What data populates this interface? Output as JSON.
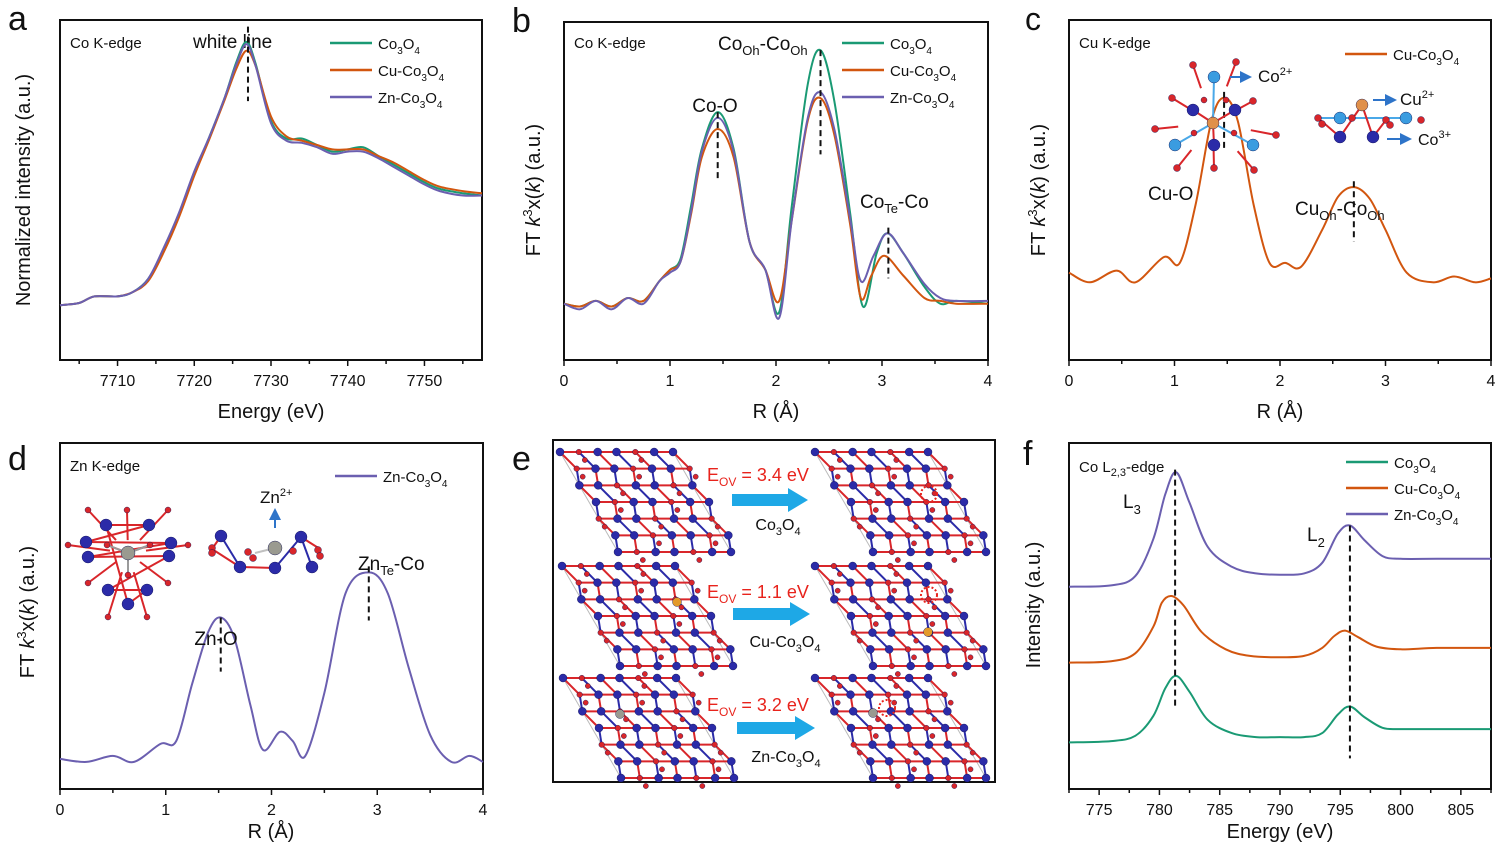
{
  "colors": {
    "co3o4": "#1a9a74",
    "cu": "#d2560f",
    "zn": "#6b5fb0",
    "axis": "#111111",
    "red": "#e8231c",
    "arrow": "#1ea8e6",
    "codark": "#2b2ba8",
    "o": "#d9262a"
  },
  "chart_data": [
    {
      "id": "a",
      "panel_letter": "a",
      "type": "line",
      "edge_label": "Co K-edge",
      "xlabel": "Energy (eV)",
      "ylabel": "Normalized intensity (a.u.)",
      "xlim": [
        7702.5,
        7757.5
      ],
      "ylim": [
        0,
        1.55
      ],
      "xticks": [
        7710,
        7720,
        7730,
        7740,
        7750
      ],
      "xtick_labels": [
        "7710",
        "7720",
        "7730",
        "7740",
        "7750"
      ],
      "legend": "top-right",
      "annotations": [
        {
          "text": "white line",
          "x": 7727
        }
      ],
      "series": [
        {
          "name": "Co3O4",
          "sub": [
            "Co",
            "3",
            "O",
            "4"
          ],
          "color_key": "co3o4",
          "x": [
            7702.5,
            7705,
            7707,
            7710,
            7712,
            7714,
            7716,
            7718,
            7720,
            7722,
            7724,
            7725.5,
            7726.8,
            7728,
            7730,
            7732,
            7734,
            7736,
            7738,
            7740,
            7742,
            7744,
            7746,
            7748,
            7750,
            7752,
            7755,
            7757.5
          ],
          "y": [
            0.25,
            0.26,
            0.29,
            0.29,
            0.31,
            0.37,
            0.5,
            0.66,
            0.85,
            1.02,
            1.2,
            1.36,
            1.45,
            1.35,
            1.09,
            1.01,
            1.01,
            0.98,
            0.95,
            0.96,
            0.97,
            0.93,
            0.89,
            0.85,
            0.81,
            0.78,
            0.76,
            0.75
          ]
        },
        {
          "name": "Cu-Co3O4",
          "sub": [
            "Cu-Co",
            "3",
            "O",
            "4"
          ],
          "color_key": "cu",
          "x": [
            7702.5,
            7705,
            7707,
            7710,
            7712,
            7714,
            7716,
            7718,
            7720,
            7722,
            7724,
            7725.5,
            7726.8,
            7728,
            7730,
            7732,
            7734,
            7736,
            7738,
            7740,
            7742,
            7744,
            7746,
            7748,
            7750,
            7752,
            7755,
            7757.5
          ],
          "y": [
            0.25,
            0.26,
            0.29,
            0.29,
            0.31,
            0.36,
            0.49,
            0.65,
            0.84,
            1.01,
            1.19,
            1.33,
            1.41,
            1.34,
            1.11,
            1.02,
            1.0,
            0.98,
            0.96,
            0.96,
            0.96,
            0.93,
            0.9,
            0.86,
            0.82,
            0.79,
            0.77,
            0.76
          ]
        },
        {
          "name": "Zn-Co3O4",
          "sub": [
            "Zn-Co",
            "3",
            "O",
            "4"
          ],
          "color_key": "zn",
          "x": [
            7702.5,
            7705,
            7707,
            7710,
            7712,
            7714,
            7716,
            7718,
            7720,
            7722,
            7724,
            7725.5,
            7726.8,
            7728,
            7730,
            7732,
            7734,
            7736,
            7738,
            7740,
            7742,
            7744,
            7746,
            7748,
            7750,
            7752,
            7755,
            7757.5
          ],
          "y": [
            0.25,
            0.26,
            0.29,
            0.29,
            0.31,
            0.37,
            0.51,
            0.67,
            0.86,
            1.02,
            1.2,
            1.35,
            1.44,
            1.34,
            1.08,
            1.0,
            0.99,
            0.97,
            0.94,
            0.95,
            0.95,
            0.92,
            0.88,
            0.84,
            0.8,
            0.77,
            0.75,
            0.75
          ]
        }
      ]
    },
    {
      "id": "b",
      "panel_letter": "b",
      "type": "line",
      "edge_label": "Co K-edge",
      "xlabel": "R (Å)",
      "ylabel": "FT k3x(k) (a.u.)",
      "xlim": [
        0,
        4
      ],
      "ylim": [
        -0.2,
        1.0
      ],
      "xticks": [
        0,
        1,
        2,
        3,
        4
      ],
      "xtick_labels": [
        "0",
        "1",
        "2",
        "3",
        "4"
      ],
      "legend": "top-right",
      "annotations": [
        {
          "text": "Co-O",
          "x": 1.45
        },
        {
          "text": "CoOh-CoOh",
          "x": 2.42
        },
        {
          "text": "CoTe-Co",
          "x": 3.06
        }
      ],
      "series": [
        {
          "name": "Co3O4",
          "sub": [
            "Co",
            "3",
            "O",
            "4"
          ],
          "color_key": "co3o4",
          "x": [
            0,
            0.15,
            0.3,
            0.45,
            0.6,
            0.75,
            0.9,
            1.0,
            1.1,
            1.2,
            1.3,
            1.45,
            1.6,
            1.75,
            1.9,
            2.03,
            2.15,
            2.3,
            2.42,
            2.55,
            2.7,
            2.82,
            2.95,
            3.05,
            3.2,
            3.4,
            3.55,
            3.7,
            4.0
          ],
          "y": [
            0.0,
            -0.01,
            0.01,
            -0.01,
            0.02,
            0.01,
            0.08,
            0.12,
            0.16,
            0.35,
            0.55,
            0.68,
            0.55,
            0.22,
            0.12,
            -0.03,
            0.35,
            0.78,
            0.9,
            0.72,
            0.32,
            -0.01,
            0.18,
            0.25,
            0.18,
            0.06,
            0.0,
            0.01,
            0.0
          ]
        },
        {
          "name": "Cu-Co3O4",
          "sub": [
            "Cu-Co",
            "3",
            "O",
            "4"
          ],
          "color_key": "cu",
          "x": [
            0,
            0.15,
            0.3,
            0.45,
            0.6,
            0.75,
            0.9,
            1.0,
            1.1,
            1.2,
            1.3,
            1.45,
            1.6,
            1.75,
            1.9,
            2.03,
            2.15,
            2.3,
            2.42,
            2.55,
            2.7,
            2.8,
            2.9,
            3.02,
            3.2,
            3.4,
            3.55,
            3.7,
            4.0
          ],
          "y": [
            0.0,
            -0.01,
            0.01,
            -0.01,
            0.02,
            0.01,
            0.08,
            0.12,
            0.15,
            0.32,
            0.52,
            0.62,
            0.52,
            0.22,
            0.12,
            0.01,
            0.3,
            0.65,
            0.73,
            0.6,
            0.28,
            0.02,
            0.1,
            0.17,
            0.1,
            0.02,
            0.01,
            0.0,
            0.0
          ]
        },
        {
          "name": "Zn-Co3O4",
          "sub": [
            "Zn-Co",
            "3",
            "O",
            "4"
          ],
          "color_key": "zn",
          "x": [
            0,
            0.15,
            0.3,
            0.45,
            0.6,
            0.75,
            0.9,
            1.0,
            1.1,
            1.2,
            1.3,
            1.45,
            1.6,
            1.75,
            1.9,
            2.03,
            2.15,
            2.3,
            2.42,
            2.55,
            2.7,
            2.8,
            2.92,
            3.05,
            3.2,
            3.4,
            3.55,
            3.7,
            4.0
          ],
          "y": [
            0.0,
            -0.02,
            0.01,
            -0.02,
            0.02,
            0.0,
            0.08,
            0.11,
            0.15,
            0.33,
            0.54,
            0.66,
            0.54,
            0.22,
            0.12,
            -0.05,
            0.3,
            0.66,
            0.75,
            0.62,
            0.3,
            0.08,
            0.17,
            0.25,
            0.18,
            0.07,
            0.02,
            0.01,
            0.01
          ]
        }
      ]
    },
    {
      "id": "c",
      "panel_letter": "c",
      "type": "line",
      "edge_label": "Cu K-edge",
      "xlabel": "R (Å)",
      "ylabel": "FT k3x(k) (a.u.)",
      "xlim": [
        0,
        4
      ],
      "ylim": [
        -0.45,
        1.3
      ],
      "xticks": [
        0,
        1,
        2,
        3,
        4
      ],
      "xtick_labels": [
        "0",
        "1",
        "2",
        "3",
        "4"
      ],
      "legend": "top-right",
      "annotations": [
        {
          "text": "Cu-O",
          "x": 1.47
        },
        {
          "text": "CuOh-CoOh",
          "x": 2.7
        }
      ],
      "inset_labels": [
        "Co2+",
        "Cu2+",
        "Co3+"
      ],
      "series": [
        {
          "name": "Cu-Co3O4",
          "sub": [
            "Cu-Co",
            "3",
            "O",
            "4"
          ],
          "color_key": "cu",
          "x": [
            0,
            0.2,
            0.45,
            0.63,
            0.9,
            1.05,
            1.2,
            1.35,
            1.47,
            1.6,
            1.75,
            1.9,
            2.05,
            2.2,
            2.4,
            2.55,
            2.7,
            2.85,
            3.0,
            3.2,
            3.45,
            3.65,
            3.85,
            4.0
          ],
          "y": [
            0.0,
            -0.05,
            0.01,
            -0.05,
            0.08,
            0.05,
            0.35,
            0.78,
            0.9,
            0.78,
            0.35,
            0.05,
            0.05,
            0.03,
            0.22,
            0.39,
            0.44,
            0.38,
            0.22,
            0.0,
            -0.05,
            -0.02,
            -0.05,
            -0.03
          ]
        }
      ]
    },
    {
      "id": "d",
      "panel_letter": "d",
      "type": "line",
      "edge_label": "Zn K-edge",
      "xlabel": "R (Å)",
      "ylabel": "FT k3x(k) (a.u.)",
      "xlim": [
        0,
        4
      ],
      "ylim": [
        -0.1,
        1.05
      ],
      "xticks": [
        0,
        1,
        2,
        3,
        4
      ],
      "xtick_labels": [
        "0",
        "1",
        "2",
        "3",
        "4"
      ],
      "legend": "top-right",
      "annotations": [
        {
          "text": "Zn-O",
          "x": 1.52
        },
        {
          "text": "ZnTe-Co",
          "x": 2.92
        }
      ],
      "inset_labels": [
        "Zn2+"
      ],
      "series": [
        {
          "name": "Zn-Co3O4",
          "sub": [
            "Zn-Co",
            "3",
            "O",
            "4"
          ],
          "color_key": "zn",
          "x": [
            0,
            0.25,
            0.5,
            0.7,
            0.95,
            1.1,
            1.25,
            1.4,
            1.52,
            1.65,
            1.8,
            1.92,
            2.08,
            2.2,
            2.32,
            2.5,
            2.7,
            2.92,
            3.1,
            3.3,
            3.5,
            3.7,
            3.87,
            4.0
          ],
          "y": [
            0.0,
            -0.01,
            0.01,
            -0.01,
            0.05,
            0.06,
            0.25,
            0.42,
            0.47,
            0.4,
            0.18,
            0.03,
            0.09,
            0.06,
            0.01,
            0.22,
            0.55,
            0.62,
            0.55,
            0.3,
            0.08,
            -0.01,
            0.01,
            -0.01
          ]
        }
      ]
    },
    {
      "id": "f",
      "panel_letter": "f",
      "type": "line",
      "edge_label": "Co L2,3-edge",
      "xlabel": "Energy (eV)",
      "ylabel": "Intensity (a.u.)",
      "xlim": [
        772.5,
        807.5
      ],
      "ylim": [
        0,
        2.6
      ],
      "xticks": [
        775,
        780,
        785,
        790,
        795,
        800,
        805
      ],
      "xtick_labels": [
        "775",
        "780",
        "785",
        "790",
        "795",
        "800",
        "805"
      ],
      "legend": "top-right",
      "annotations": [
        {
          "text": "L3",
          "x": 781.3
        },
        {
          "text": "L2",
          "x": 795.8
        }
      ],
      "series": [
        {
          "name": "Co3O4",
          "sub": [
            "Co",
            "3",
            "O",
            "4"
          ],
          "color_key": "co3o4",
          "x": [
            772.5,
            776,
            778,
            779.5,
            780.5,
            781.4,
            782.5,
            784,
            786,
            788,
            790,
            792,
            793.5,
            794.8,
            795.8,
            797,
            798.5,
            800,
            803,
            807.5
          ],
          "y": [
            0.35,
            0.36,
            0.4,
            0.55,
            0.76,
            0.85,
            0.73,
            0.52,
            0.42,
            0.39,
            0.39,
            0.39,
            0.42,
            0.56,
            0.62,
            0.54,
            0.46,
            0.45,
            0.45,
            0.45
          ]
        },
        {
          "name": "Cu-Co3O4",
          "sub": [
            "Cu-Co",
            "3",
            "O",
            "4"
          ],
          "color_key": "cu",
          "x": [
            772.5,
            776,
            778,
            779.5,
            780.2,
            781.0,
            782.0,
            783.5,
            785.5,
            787.5,
            790,
            792,
            793.5,
            794.5,
            795.4,
            796.5,
            798,
            800,
            803,
            807.5
          ],
          "y": [
            0.95,
            0.96,
            1.02,
            1.22,
            1.4,
            1.45,
            1.38,
            1.18,
            1.05,
            1.0,
            0.99,
            1.0,
            1.06,
            1.15,
            1.19,
            1.14,
            1.07,
            1.05,
            1.06,
            1.06
          ]
        },
        {
          "name": "Zn-Co3O4",
          "sub": [
            "Zn-Co",
            "3",
            "O",
            "4"
          ],
          "color_key": "zn",
          "x": [
            772.5,
            776,
            778,
            779.5,
            780.5,
            781.4,
            782.5,
            784,
            786,
            788,
            790,
            792,
            793.5,
            794.8,
            795.8,
            797,
            798.5,
            800,
            803,
            807.5
          ],
          "y": [
            1.52,
            1.53,
            1.6,
            1.88,
            2.22,
            2.38,
            2.15,
            1.82,
            1.67,
            1.62,
            1.61,
            1.62,
            1.7,
            1.92,
            1.98,
            1.87,
            1.75,
            1.73,
            1.73,
            1.73
          ]
        }
      ]
    }
  ],
  "panel_e": {
    "panel_letter": "e",
    "rows": [
      {
        "energy_label": "E",
        "energy_sub": "OV",
        "energy_value": " = 3.4 eV",
        "material": [
          "Co",
          "3",
          "O",
          "4"
        ]
      },
      {
        "energy_label": "E",
        "energy_sub": "OV",
        "energy_value": " = 1.1 eV",
        "material": [
          "Cu-Co",
          "3",
          "O",
          "4"
        ]
      },
      {
        "energy_label": "E",
        "energy_sub": "OV",
        "energy_value": " = 3.2 eV",
        "material": [
          "Zn-Co",
          "3",
          "O",
          "4"
        ]
      }
    ]
  },
  "text": {
    "inset_co2": "Co",
    "inset_co2_sup": "2+",
    "inset_cu2": "Cu",
    "inset_cu2_sup": "2+",
    "inset_co3": "Co",
    "inset_co3_sup": "3+",
    "inset_zn2": "Zn",
    "inset_zn2_sup": "2+",
    "b_ann1": "Co-O",
    "b_ann2_a": "Co",
    "b_ann2_s1": "Oh",
    "b_ann2_b": "-Co",
    "b_ann2_s2": "Oh",
    "b_ann3_a": "Co",
    "b_ann3_s": "Te",
    "b_ann3_b": "-Co",
    "c_ann1": "Cu-O",
    "c_ann2_a": "Cu",
    "c_ann2_s1": "Oh",
    "c_ann2_b": "-Co",
    "c_ann2_s2": "Oh",
    "d_ann1": "Zn-O",
    "d_ann2_a": "Zn",
    "d_ann2_s": "Te",
    "d_ann2_b": "-Co",
    "a_ann": "white line",
    "f_edge_a": "Co L",
    "f_edge_s": "2,3",
    "f_edge_b": "-edge",
    "f_l3": "L",
    "f_l3_s": "3",
    "f_l2": "L",
    "f_l2_s": "2",
    "ylab_ft_a": "FT ",
    "ylab_ft_k": "k",
    "ylab_ft_sup": "3",
    "ylab_ft_b": "x(",
    "ylab_ft_k2": "k",
    "ylab_ft_c": ") (a.u.)"
  }
}
